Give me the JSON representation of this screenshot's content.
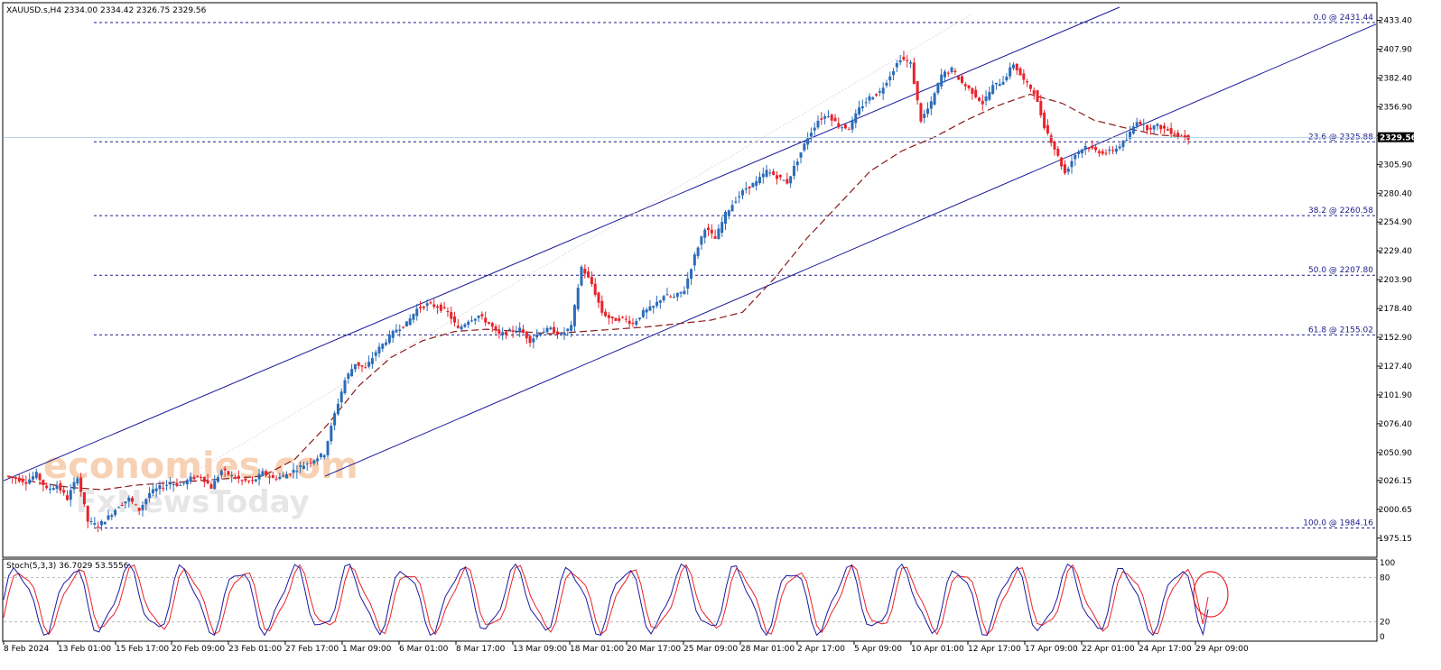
{
  "header": {
    "symbol_info": "XAUUSD.s,H4  2334.00 2334.42 2326.75 2329.56"
  },
  "watermark": {
    "brand": "economies.com",
    "sub": "FxNewsToday"
  },
  "chart_data": {
    "type": "candlestick",
    "symbol": "XAUUSD.s",
    "timeframe": "H4",
    "ohlc_last": {
      "open": 2334.0,
      "high": 2334.42,
      "low": 2326.75,
      "close": 2329.56
    },
    "current_price_label": "2329.56",
    "ylim": [
      1963.0,
      2445.0
    ],
    "y_ticks": [
      "2433.40",
      "2407.90",
      "2382.40",
      "2356.90",
      "2331.40",
      "2305.90",
      "2280.40",
      "2254.90",
      "2229.40",
      "2203.90",
      "2178.40",
      "2152.90",
      "2127.40",
      "2101.90",
      "2076.40",
      "2050.90",
      "2026.15",
      "2000.65",
      "1975.15"
    ],
    "y_tick_values": [
      2433.4,
      2407.9,
      2382.4,
      2356.9,
      2331.4,
      2305.9,
      2280.4,
      2254.9,
      2229.4,
      2203.9,
      2178.4,
      2152.9,
      2127.4,
      2101.9,
      2076.4,
      2050.9,
      2026.15,
      2000.65,
      1975.15
    ],
    "x_ticks": [
      "8 Feb 2024",
      "13 Feb 01:00",
      "15 Feb 17:00",
      "20 Feb 09:00",
      "23 Feb 01:00",
      "27 Feb 17:00",
      "1 Mar 09:00",
      "6 Mar 01:00",
      "8 Mar 17:00",
      "13 Mar 09:00",
      "18 Mar 01:00",
      "20 Mar 17:00",
      "25 Mar 09:00",
      "28 Mar 01:00",
      "2 Apr 17:00",
      "5 Apr 09:00",
      "10 Apr 01:00",
      "12 Apr 17:00",
      "17 Apr 09:00",
      "22 Apr 01:00",
      "24 Apr 17:00",
      "29 Apr 09:00"
    ],
    "fibonacci": [
      {
        "label": "0.0 @ 2431.44",
        "value": 2431.44
      },
      {
        "label": "23.6 @ 2325.88",
        "value": 2325.88
      },
      {
        "label": "38.2 @ 2260.58",
        "value": 2260.58
      },
      {
        "label": "50.0 @ 2207.80",
        "value": 2207.8
      },
      {
        "label": "61.8 @ 2155.02",
        "value": 2155.02
      },
      {
        "label": "100.0 @ 1984.16",
        "value": 1984.16
      }
    ],
    "price_path": [
      2030,
      2028,
      2025,
      2032,
      2018,
      2022,
      2010,
      2030,
      1990,
      1986,
      1994,
      2004,
      2010,
      2000,
      2015,
      2020,
      2024,
      2022,
      2028,
      2030,
      2020,
      2035,
      2030,
      2026,
      2025,
      2033,
      2028,
      2030,
      2035,
      2040,
      2045,
      2050,
      2085,
      2115,
      2130,
      2125,
      2140,
      2150,
      2160,
      2165,
      2178,
      2182,
      2180,
      2175,
      2160,
      2168,
      2172,
      2165,
      2155,
      2158,
      2160,
      2150,
      2158,
      2160,
      2155,
      2162,
      2215,
      2200,
      2175,
      2168,
      2170,
      2165,
      2175,
      2180,
      2190,
      2188,
      2195,
      2225,
      2250,
      2240,
      2262,
      2275,
      2285,
      2290,
      2300,
      2295,
      2290,
      2310,
      2330,
      2345,
      2350,
      2340,
      2338,
      2355,
      2365,
      2370,
      2385,
      2400,
      2395,
      2345,
      2360,
      2385,
      2390,
      2378,
      2370,
      2360,
      2375,
      2380,
      2395,
      2380,
      2370,
      2340,
      2320,
      2298,
      2315,
      2322,
      2318,
      2316,
      2320,
      2328,
      2345,
      2338,
      2340,
      2336,
      2332,
      2329.56
    ],
    "ma_path": [
      2030,
      2024,
      2020,
      2018,
      2022,
      2024,
      2026,
      2028,
      2030,
      2045,
      2075,
      2110,
      2135,
      2150,
      2158,
      2160,
      2158,
      2156,
      2158,
      2160,
      2162,
      2165,
      2168,
      2175,
      2205,
      2240,
      2270,
      2300,
      2318,
      2330,
      2345,
      2358,
      2368,
      2360,
      2345,
      2338,
      2332,
      2330
    ]
  },
  "stochastic": {
    "label": "Stoch(5,3,3) 36.7029 53.5556",
    "k": 36.7029,
    "d": 53.5556,
    "levels": [
      80,
      20
    ],
    "y_ticks": [
      "100",
      "80",
      "20",
      "0"
    ]
  },
  "colors": {
    "bull": "#2b6cb8",
    "bear": "#e8232a",
    "channel": "#1a1a9a",
    "fib": "#1b1b8c",
    "ma": "#8b1a1a",
    "stoch_k": "#1a1aa0",
    "stoch_d": "#e8232a",
    "watermark": "#f6c9a6"
  }
}
